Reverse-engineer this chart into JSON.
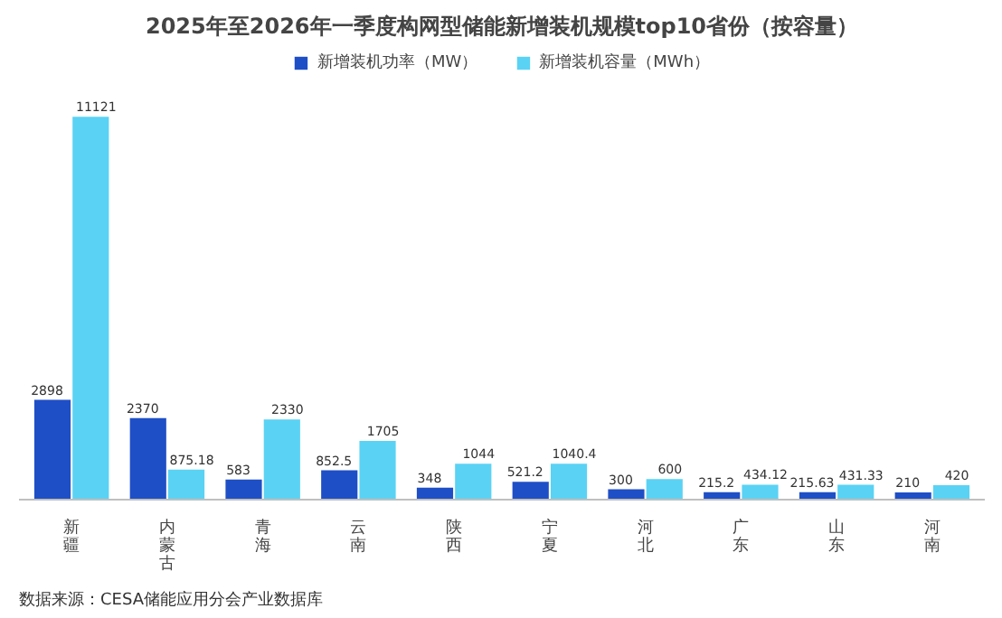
{
  "chart_data": {
    "type": "bar",
    "title": "2025年至2026年一季度构网型储能新增装机规模top10省份（按容量）",
    "categories": [
      "新疆",
      "内蒙古",
      "青海",
      "云南",
      "陕西",
      "宁夏",
      "河北",
      "广东",
      "山东",
      "河南"
    ],
    "series": [
      {
        "name": "新增装机功率（MW）",
        "color": "#1f4fc6",
        "values": [
          2898,
          2370,
          583,
          852.5,
          348,
          521.2,
          300,
          215.2,
          215.63,
          210
        ]
      },
      {
        "name": "新增装机容量（MWh）",
        "color": "#5ad2f4",
        "values": [
          11121,
          875.18,
          2330,
          1705,
          1044,
          1040.4,
          600,
          434.12,
          431.33,
          420
        ]
      }
    ],
    "data_labels": true,
    "legend": "top",
    "grid": false,
    "annotations": [
      "数据来源：CESA储能应用分会产业数据库"
    ]
  }
}
